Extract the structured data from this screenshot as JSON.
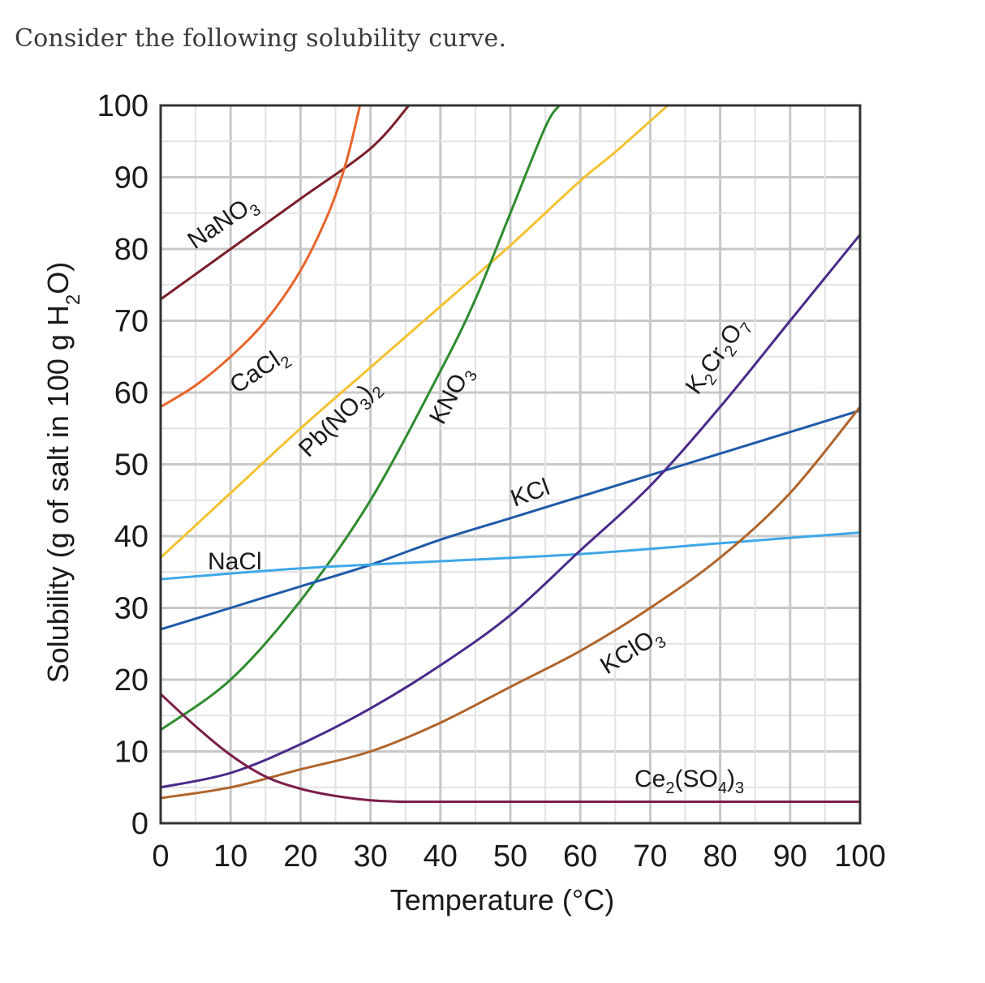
{
  "question": "Consider the following solubility curve.",
  "chart_data": {
    "type": "line",
    "title": "",
    "xlabel": "Temperature (°C)",
    "ylabel": "Solubility (g of salt in 100 g H₂O)",
    "xlim": [
      0,
      100
    ],
    "ylim": [
      0,
      100
    ],
    "x_ticks": [
      "0",
      "10",
      "20",
      "30",
      "40",
      "50",
      "60",
      "70",
      "80",
      "90",
      "100"
    ],
    "y_ticks": [
      "0",
      "10",
      "20",
      "30",
      "40",
      "50",
      "60",
      "70",
      "80",
      "90",
      "100"
    ],
    "grid": true,
    "series": [
      {
        "name": "NaNO₃",
        "color": "#7a1f2b",
        "points": [
          [
            0,
            73
          ],
          [
            10,
            80
          ],
          [
            20,
            87
          ],
          [
            30,
            94
          ],
          [
            35.5,
            100
          ]
        ]
      },
      {
        "name": "CaCl₂",
        "color": "#e8642a",
        "points": [
          [
            0,
            58
          ],
          [
            5,
            61
          ],
          [
            10,
            65
          ],
          [
            15,
            70
          ],
          [
            20,
            77
          ],
          [
            24,
            85
          ],
          [
            26.5,
            92
          ],
          [
            28.5,
            100
          ]
        ]
      },
      {
        "name": "Pb(NO₃)₂",
        "color": "#f2c230",
        "points": [
          [
            0,
            37
          ],
          [
            10,
            46
          ],
          [
            20,
            55
          ],
          [
            30,
            63.5
          ],
          [
            40,
            72
          ],
          [
            50,
            80.5
          ],
          [
            60,
            89.5
          ],
          [
            65,
            93.5
          ],
          [
            72.5,
            100
          ]
        ]
      },
      {
        "name": "KNO₃",
        "color": "#2e8b2e",
        "points": [
          [
            0,
            13
          ],
          [
            10,
            20
          ],
          [
            20,
            31
          ],
          [
            30,
            45
          ],
          [
            40,
            63
          ],
          [
            45,
            73
          ],
          [
            50,
            85
          ],
          [
            55,
            97
          ],
          [
            57,
            100
          ]
        ]
      },
      {
        "name": "KCl",
        "color": "#1f5aa8",
        "points": [
          [
            0,
            27
          ],
          [
            10,
            30
          ],
          [
            20,
            33
          ],
          [
            30,
            36
          ],
          [
            40,
            39.5
          ],
          [
            50,
            42.5
          ],
          [
            60,
            45.5
          ],
          [
            70,
            48.5
          ],
          [
            80,
            51.5
          ],
          [
            90,
            54.5
          ],
          [
            100,
            57.5
          ]
        ]
      },
      {
        "name": "NaCl",
        "color": "#3fa7e8",
        "points": [
          [
            0,
            34
          ],
          [
            20,
            35.5
          ],
          [
            40,
            36.5
          ],
          [
            60,
            37.5
          ],
          [
            80,
            39
          ],
          [
            100,
            40.5
          ]
        ]
      },
      {
        "name": "K₂Cr₂O₇",
        "color": "#4a2a8a",
        "points": [
          [
            0,
            5
          ],
          [
            10,
            7
          ],
          [
            20,
            11
          ],
          [
            30,
            16
          ],
          [
            40,
            22
          ],
          [
            50,
            29
          ],
          [
            60,
            38
          ],
          [
            70,
            47
          ],
          [
            80,
            58
          ],
          [
            90,
            70
          ],
          [
            100,
            82
          ]
        ]
      },
      {
        "name": "KClO₃",
        "color": "#b0642a",
        "points": [
          [
            0,
            3.5
          ],
          [
            10,
            5
          ],
          [
            20,
            7.5
          ],
          [
            30,
            10
          ],
          [
            40,
            14
          ],
          [
            50,
            19
          ],
          [
            60,
            24
          ],
          [
            70,
            30
          ],
          [
            80,
            37
          ],
          [
            90,
            46
          ],
          [
            100,
            58
          ]
        ]
      },
      {
        "name": "Ce₂(SO₄)₃",
        "color": "#7a1f4a",
        "points": [
          [
            0,
            18
          ],
          [
            5,
            13.5
          ],
          [
            10,
            9.5
          ],
          [
            15,
            6.5
          ],
          [
            20,
            4.8
          ],
          [
            25,
            3.8
          ],
          [
            30,
            3.2
          ],
          [
            35,
            3
          ],
          [
            40,
            3
          ],
          [
            100,
            3
          ]
        ]
      }
    ],
    "labels": [
      {
        "text": "NaNO",
        "sub": "3"
      },
      {
        "text": "CaCl",
        "sub": "2"
      },
      {
        "text": "Pb(NO",
        "sub": "3",
        "tail": ")",
        "sub2": "2"
      },
      {
        "text": "KNO",
        "sub": "3"
      },
      {
        "text": "KCl"
      },
      {
        "text": "NaCl"
      },
      {
        "text": "K",
        "sub": "2",
        "tail": "Cr",
        "sub2": "2",
        "tail2": "O",
        "sub3": "7"
      },
      {
        "text": "KClO",
        "sub": "3"
      },
      {
        "text": "Ce",
        "sub": "2",
        "tail": "(SO",
        "sub2": "4",
        "tail2": ")",
        "sub3": "3"
      }
    ]
  }
}
